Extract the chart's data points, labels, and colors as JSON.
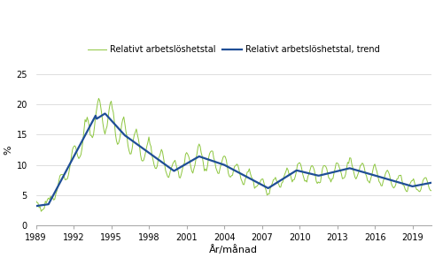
{
  "title": "",
  "ylabel": "%",
  "xlabel": "År/månad",
  "legend1": "Relativt arbetslöshetstal",
  "legend2": "Relativt arbetslöshetstal, trend",
  "color_raw": "#8dc63f",
  "color_trend": "#1f4e96",
  "ylim": [
    0,
    25
  ],
  "yticks": [
    0,
    5,
    10,
    15,
    20,
    25
  ],
  "xticks": [
    1989,
    1992,
    1995,
    1998,
    2001,
    2004,
    2007,
    2010,
    2013,
    2016,
    2019
  ],
  "bg_color": "#ffffff",
  "grid_color": "#d0d0d0"
}
